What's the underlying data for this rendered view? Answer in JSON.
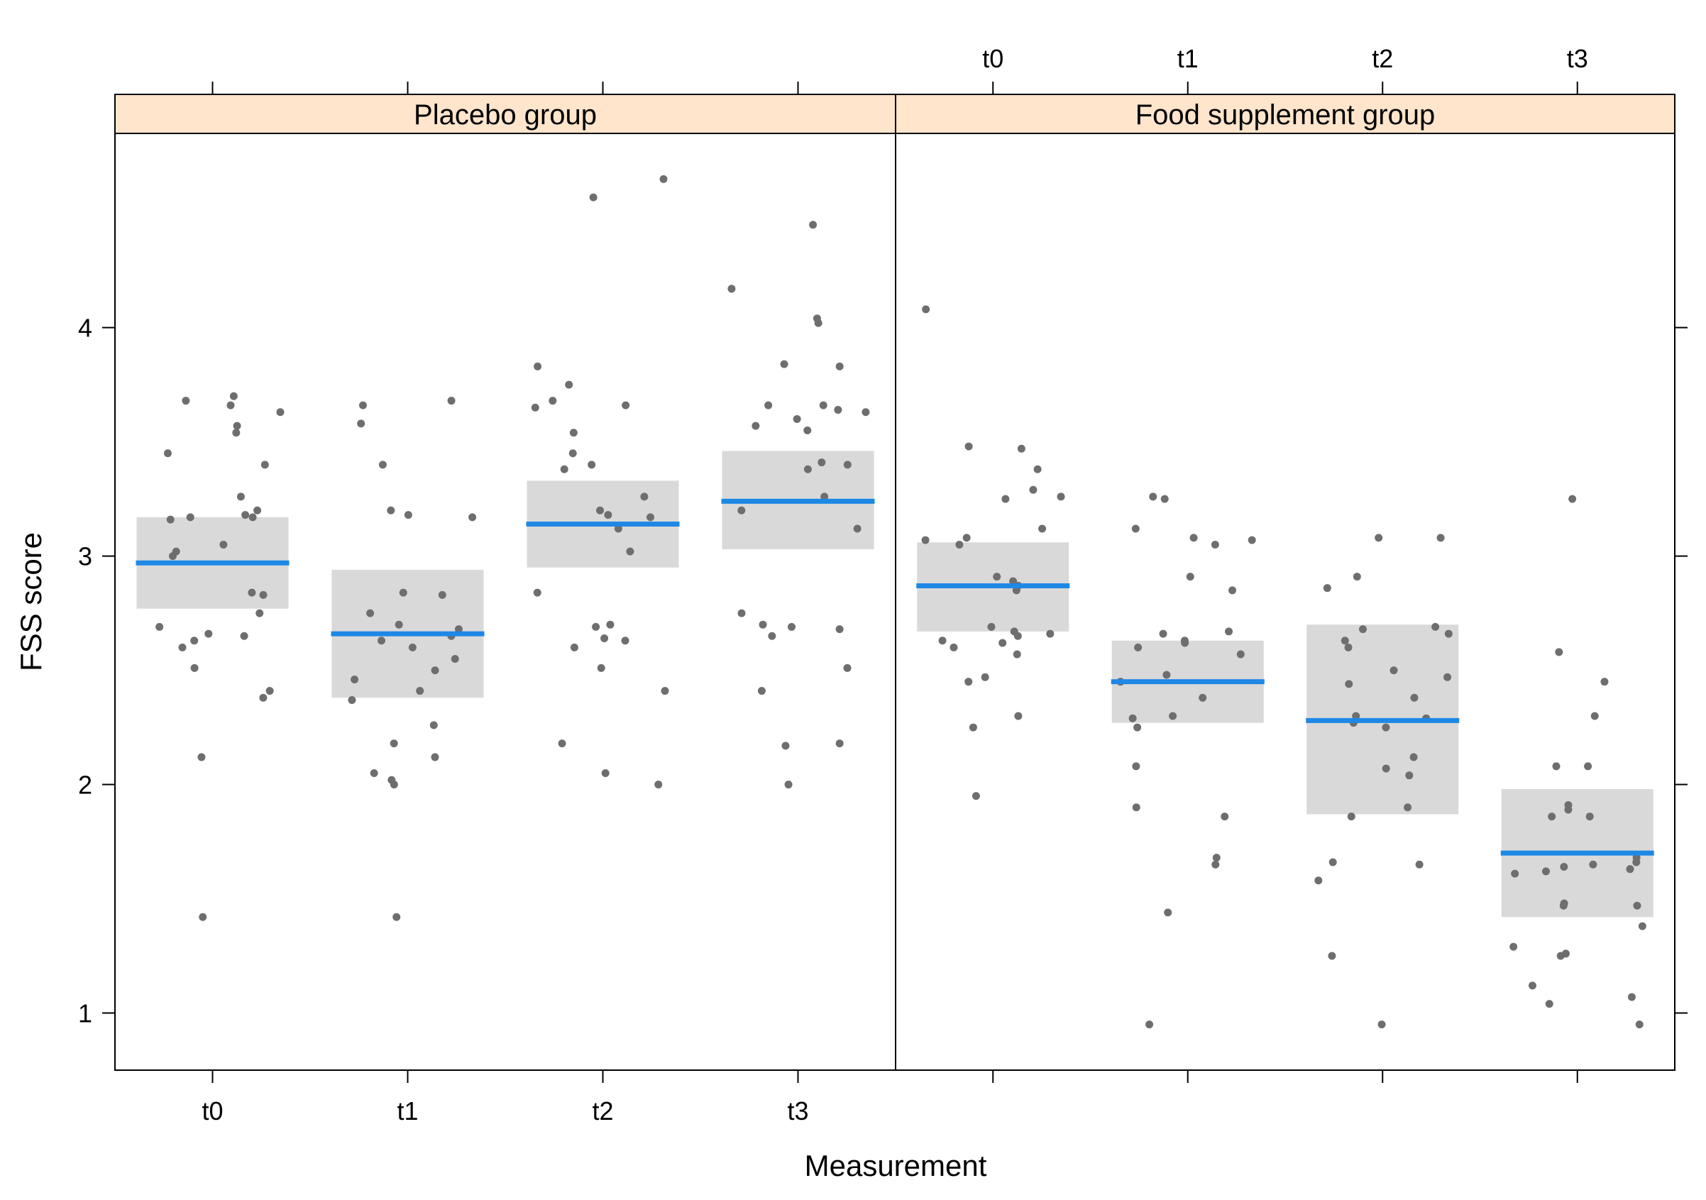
{
  "colors": {
    "strip": "#ffe5cc",
    "band": "#d9d9d9",
    "mean": "#1e88e5",
    "point": "#6e6e6e",
    "frame": "#000000"
  },
  "chart_data": {
    "type": "scatter",
    "xlabel": "Measurement",
    "ylabel": "FSS score",
    "ylim": [
      0.75,
      4.85
    ],
    "y_ticks": [
      "1",
      "2",
      "3",
      "4"
    ],
    "categories": [
      "t0",
      "t1",
      "t2",
      "t3"
    ],
    "grid": false,
    "panels": [
      {
        "name": "Placebo group",
        "groups": [
          {
            "category": "t0",
            "mean": 2.97,
            "lower": 2.77,
            "upper": 3.17,
            "points": [
              3.7,
              3.68,
              3.66,
              3.63,
              3.57,
              3.54,
              3.45,
              3.4,
              3.26,
              3.2,
              3.18,
              3.17,
              3.17,
              3.16,
              3.05,
              3.02,
              3.0,
              2.84,
              2.83,
              2.75,
              2.69,
              2.66,
              2.65,
              2.63,
              2.6,
              2.51,
              2.41,
              2.38,
              2.12,
              1.42
            ]
          },
          {
            "category": "t1",
            "mean": 2.66,
            "lower": 2.38,
            "upper": 2.94,
            "points": [
              3.68,
              3.66,
              3.58,
              3.4,
              3.2,
              3.18,
              3.17,
              2.84,
              2.83,
              2.75,
              2.7,
              2.68,
              2.65,
              2.63,
              2.6,
              2.55,
              2.5,
              2.46,
              2.41,
              2.37,
              2.26,
              2.18,
              2.12,
              2.05,
              2.02,
              2.0,
              1.42
            ]
          },
          {
            "category": "t2",
            "mean": 3.14,
            "lower": 2.95,
            "upper": 3.33,
            "points": [
              4.65,
              4.57,
              3.83,
              3.75,
              3.68,
              3.66,
              3.65,
              3.54,
              3.45,
              3.4,
              3.38,
              3.26,
              3.2,
              3.18,
              3.17,
              3.12,
              3.02,
              2.84,
              2.7,
              2.69,
              2.64,
              2.63,
              2.6,
              2.51,
              2.41,
              2.18,
              2.05,
              2.0
            ]
          },
          {
            "category": "t3",
            "mean": 3.24,
            "lower": 3.03,
            "upper": 3.46,
            "points": [
              4.45,
              4.17,
              4.04,
              4.02,
              3.84,
              3.83,
              3.66,
              3.66,
              3.64,
              3.63,
              3.6,
              3.57,
              3.55,
              3.41,
              3.4,
              3.38,
              3.26,
              3.2,
              3.12,
              2.75,
              2.7,
              2.69,
              2.68,
              2.65,
              2.51,
              2.41,
              2.18,
              2.17,
              2.0
            ]
          }
        ]
      },
      {
        "name": "Food supplement group",
        "groups": [
          {
            "category": "t0",
            "mean": 2.87,
            "lower": 2.67,
            "upper": 3.06,
            "points": [
              4.08,
              3.48,
              3.47,
              3.38,
              3.29,
              3.26,
              3.25,
              3.12,
              3.08,
              3.07,
              3.05,
              2.91,
              2.89,
              2.87,
              2.85,
              2.69,
              2.67,
              2.66,
              2.65,
              2.63,
              2.62,
              2.6,
              2.57,
              2.47,
              2.45,
              2.3,
              2.25,
              1.95
            ]
          },
          {
            "category": "t1",
            "mean": 2.45,
            "lower": 2.27,
            "upper": 2.63,
            "points": [
              3.26,
              3.25,
              3.12,
              3.08,
              3.07,
              3.05,
              2.91,
              2.85,
              2.67,
              2.66,
              2.63,
              2.62,
              2.6,
              2.57,
              2.48,
              2.45,
              2.38,
              2.3,
              2.29,
              2.25,
              2.08,
              1.9,
              1.86,
              1.68,
              1.65,
              1.44,
              0.95
            ]
          },
          {
            "category": "t2",
            "mean": 2.28,
            "lower": 1.87,
            "upper": 2.7,
            "points": [
              3.08,
              3.08,
              2.91,
              2.86,
              2.69,
              2.68,
              2.66,
              2.63,
              2.6,
              2.5,
              2.47,
              2.44,
              2.38,
              2.3,
              2.29,
              2.27,
              2.25,
              2.12,
              2.07,
              2.04,
              1.9,
              1.86,
              1.66,
              1.65,
              1.58,
              1.25,
              0.95
            ]
          },
          {
            "category": "t3",
            "mean": 1.7,
            "lower": 1.42,
            "upper": 1.98,
            "points": [
              3.25,
              2.58,
              2.45,
              2.3,
              2.08,
              2.08,
              1.91,
              1.89,
              1.86,
              1.86,
              1.68,
              1.66,
              1.65,
              1.64,
              1.63,
              1.62,
              1.61,
              1.48,
              1.47,
              1.47,
              1.38,
              1.29,
              1.26,
              1.25,
              1.12,
              1.07,
              1.04,
              0.95
            ]
          }
        ]
      }
    ]
  }
}
